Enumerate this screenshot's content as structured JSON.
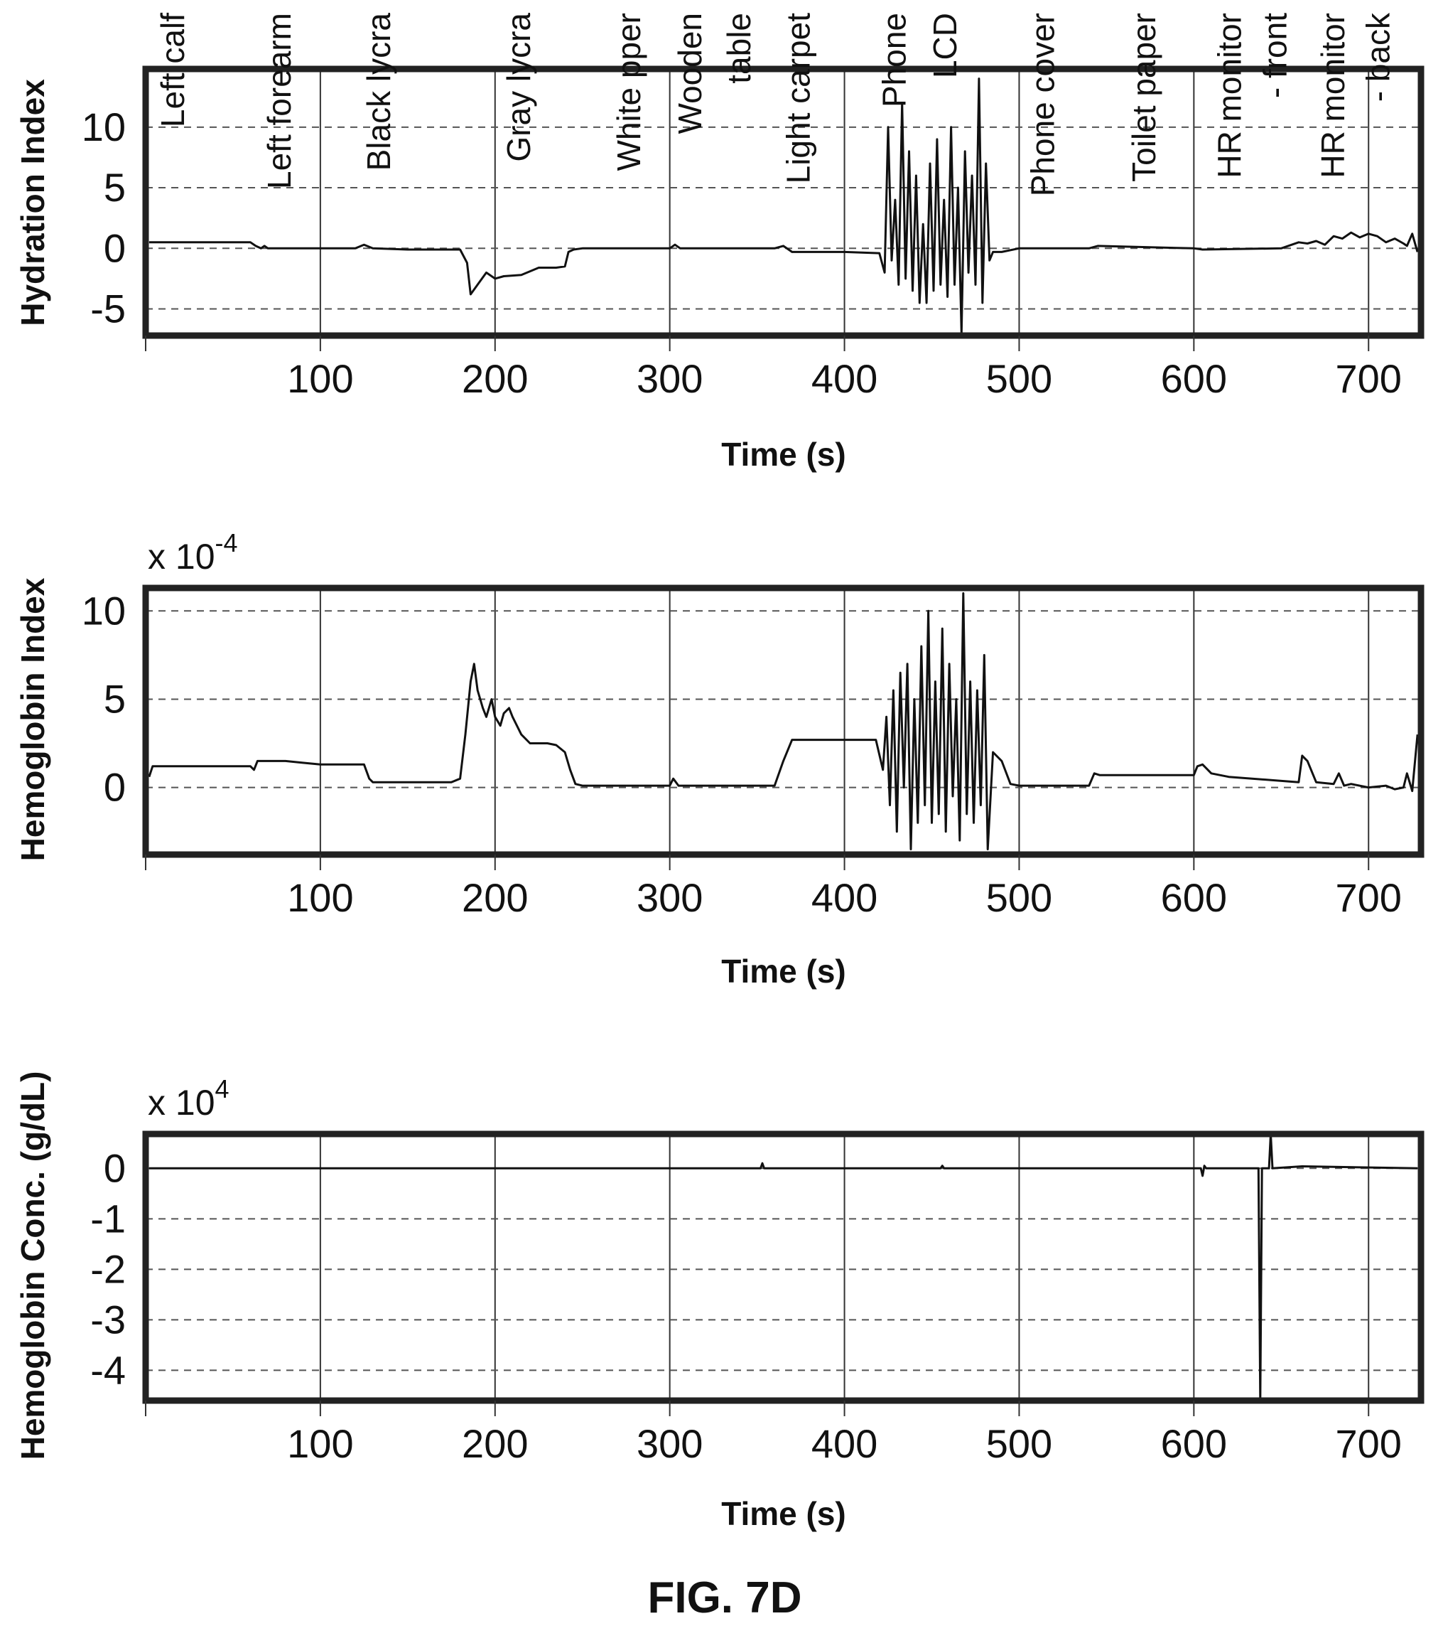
{
  "figure_caption": "FIG. 7D",
  "chart_data": [
    {
      "type": "line",
      "ylabel": "Hydration Index",
      "xlabel": "Time (s)",
      "multiplier": "",
      "xlim": [
        0,
        730
      ],
      "ylim": [
        -7.2,
        14.8
      ],
      "xticks": [
        100,
        200,
        300,
        400,
        500,
        600,
        700
      ],
      "yticks": [
        10,
        5,
        0,
        -5
      ],
      "ytick_labels": [
        "10",
        "5",
        "0",
        "-5"
      ],
      "grid": true,
      "annotations": [
        {
          "text": "Left calf",
          "x": 22
        },
        {
          "text": "Left forearm",
          "x": 83
        },
        {
          "text": "Black lycra",
          "x": 140
        },
        {
          "text": "Gray lycra",
          "x": 220
        },
        {
          "text": "White pper",
          "x": 283
        },
        {
          "text": "Wooden",
          "x": 318
        },
        {
          "text": "table",
          "x": 346
        },
        {
          "text": "Light carpet",
          "x": 380
        },
        {
          "text": "Phone",
          "x": 435
        },
        {
          "text": "LCD",
          "x": 464
        },
        {
          "text": "Phone cover",
          "x": 520
        },
        {
          "text": "Toilet paper",
          "x": 578
        },
        {
          "text": "HR monitor",
          "x": 627
        },
        {
          "text": "- front",
          "x": 653
        },
        {
          "text": "HR monitor",
          "x": 686
        },
        {
          "text": "- back",
          "x": 712
        }
      ],
      "series": [
        {
          "x": [
            2,
            60,
            63,
            66,
            68,
            70,
            100,
            120,
            125,
            130,
            150,
            180,
            184,
            186,
            190,
            195,
            200,
            205,
            215,
            225,
            235,
            240,
            242,
            245,
            250,
            280,
            300,
            303,
            306,
            320,
            360,
            365,
            370,
            400,
            420,
            423,
            425,
            427,
            429,
            431,
            433,
            435,
            437,
            439,
            441,
            443,
            445,
            447,
            449,
            451,
            453,
            455,
            457,
            459,
            461,
            463,
            465,
            467,
            469,
            471,
            473,
            475,
            477,
            479,
            481,
            483,
            485,
            490,
            500,
            540,
            545,
            600,
            605,
            650,
            660,
            665,
            670,
            675,
            680,
            685,
            690,
            695,
            700,
            705,
            710,
            715,
            720,
            722,
            725,
            728
          ],
          "y": [
            0.5,
            0.5,
            0.2,
            0.0,
            0.2,
            0.0,
            0.0,
            0.0,
            0.3,
            0.0,
            -0.1,
            -0.1,
            -1.2,
            -3.8,
            -3.0,
            -2.0,
            -2.5,
            -2.3,
            -2.2,
            -1.6,
            -1.6,
            -1.5,
            -0.3,
            -0.1,
            0.0,
            0.0,
            0.0,
            0.3,
            0.0,
            0.0,
            0.0,
            0.2,
            -0.3,
            -0.3,
            -0.4,
            -2.0,
            10.0,
            -1.0,
            4.0,
            -3.0,
            12.0,
            -2.5,
            8.0,
            -3.5,
            6.0,
            -4.5,
            2.0,
            -4.5,
            7.0,
            -3.5,
            9.0,
            -3.0,
            4.0,
            -4.0,
            10.0,
            -3.0,
            5.0,
            -7.0,
            8.0,
            -2.0,
            6.0,
            -3.0,
            14.0,
            -4.5,
            7.0,
            -1.0,
            -0.3,
            -0.3,
            0.0,
            0.0,
            0.2,
            0.0,
            -0.1,
            0.0,
            0.5,
            0.4,
            0.6,
            0.3,
            1.0,
            0.8,
            1.3,
            0.9,
            1.2,
            1.0,
            0.5,
            0.8,
            0.4,
            0.2,
            1.2,
            -0.3
          ]
        }
      ]
    },
    {
      "type": "line",
      "ylabel": "Hemoglobin Index",
      "xlabel": "Time (s)",
      "multiplier": "x 10-4",
      "multiplier_base": "x 10",
      "multiplier_exp": "-4",
      "xlim": [
        0,
        730
      ],
      "ylim": [
        -3.8,
        11.3
      ],
      "xticks": [
        100,
        200,
        300,
        400,
        500,
        600,
        700
      ],
      "yticks": [
        10,
        5,
        0
      ],
      "ytick_labels": [
        "10",
        "5",
        "0"
      ],
      "grid": true,
      "series": [
        {
          "x": [
            2,
            4,
            60,
            62,
            64,
            66,
            80,
            90,
            100,
            125,
            128,
            130,
            175,
            180,
            183,
            186,
            188,
            190,
            193,
            195,
            198,
            200,
            203,
            205,
            208,
            210,
            215,
            220,
            225,
            230,
            235,
            240,
            243,
            246,
            250,
            300,
            302,
            305,
            360,
            365,
            370,
            400,
            418,
            422,
            424,
            426,
            428,
            430,
            432,
            434,
            436,
            438,
            440,
            442,
            444,
            446,
            448,
            450,
            452,
            454,
            456,
            458,
            460,
            462,
            464,
            466,
            468,
            470,
            472,
            474,
            476,
            478,
            480,
            482,
            485,
            490,
            495,
            500,
            540,
            543,
            546,
            600,
            602,
            605,
            610,
            620,
            660,
            662,
            665,
            670,
            680,
            683,
            686,
            690,
            700,
            710,
            715,
            720,
            722,
            725,
            728
          ],
          "y": [
            0.6,
            1.2,
            1.2,
            1.0,
            1.5,
            1.5,
            1.5,
            1.4,
            1.3,
            1.3,
            0.5,
            0.3,
            0.3,
            0.5,
            3.0,
            6.0,
            7.0,
            5.5,
            4.5,
            4.0,
            5.0,
            4.0,
            3.5,
            4.2,
            4.5,
            4.0,
            3.0,
            2.5,
            2.5,
            2.5,
            2.4,
            2.0,
            1.0,
            0.2,
            0.1,
            0.1,
            0.5,
            0.1,
            0.1,
            1.5,
            2.7,
            2.7,
            2.7,
            1.0,
            4.0,
            -1.0,
            5.5,
            -2.5,
            6.5,
            0.0,
            7.0,
            -3.5,
            5.0,
            -2.0,
            8.0,
            -1.0,
            10.0,
            -2.0,
            6.0,
            -1.5,
            9.0,
            -2.5,
            7.0,
            -0.5,
            5.0,
            -3.0,
            11.0,
            -1.5,
            6.0,
            -2.0,
            5.5,
            -1.0,
            7.5,
            -3.5,
            2.0,
            1.5,
            0.2,
            0.1,
            0.1,
            0.8,
            0.7,
            0.7,
            1.2,
            1.3,
            0.8,
            0.6,
            0.3,
            1.8,
            1.5,
            0.3,
            0.2,
            0.8,
            0.1,
            0.2,
            0.0,
            0.1,
            -0.1,
            0.0,
            0.8,
            -0.2,
            3.0
          ]
        }
      ]
    },
    {
      "type": "line",
      "ylabel": "Hemoglobin Conc. (g/dL)",
      "xlabel": "Time (s)",
      "multiplier": "x 104",
      "multiplier_base": "x 10",
      "multiplier_exp": "4",
      "xlim": [
        0,
        730
      ],
      "ylim": [
        -4.6,
        0.68
      ],
      "xticks": [
        100,
        200,
        300,
        400,
        500,
        600,
        700
      ],
      "yticks": [
        0,
        -1,
        -2,
        -3,
        -4
      ],
      "ytick_labels": [
        "0",
        "-1",
        "-2",
        "-3",
        "-4"
      ],
      "grid": true,
      "series": [
        {
          "x": [
            2,
            352,
            353,
            354,
            455,
            456,
            457,
            604,
            605,
            606,
            607,
            637,
            638,
            639,
            640,
            643,
            644,
            645,
            662,
            728
          ],
          "y": [
            0.0,
            0.0,
            0.1,
            0.0,
            0.0,
            0.05,
            0.0,
            0.0,
            -0.15,
            0.05,
            0.0,
            0.0,
            -4.6,
            0.0,
            0.0,
            0.0,
            0.7,
            0.0,
            0.04,
            0.0
          ]
        }
      ]
    }
  ]
}
